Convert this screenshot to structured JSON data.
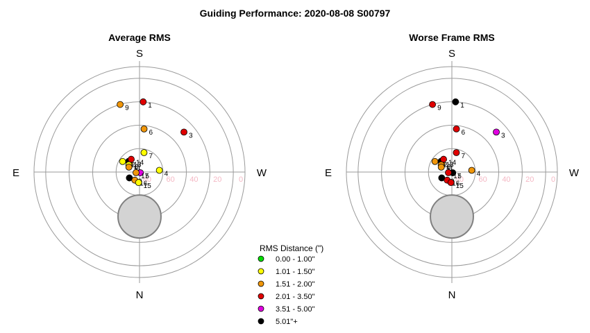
{
  "title": "Guiding Performance: 2020-08-08 S00797",
  "legend": {
    "title": "RMS Distance (\")",
    "items": [
      {
        "label": "0.00 - 1.00\"",
        "color": "#00dd00"
      },
      {
        "label": "1.01 - 1.50\"",
        "color": "#ffff00"
      },
      {
        "label": "1.51 - 2.00\"",
        "color": "#f0960a"
      },
      {
        "label": "2.01 - 3.50\"",
        "color": "#e00000"
      },
      {
        "label": "3.51 - 5.00\"",
        "color": "#e000e0"
      },
      {
        "label": "5.01\"+",
        "color": "#000000"
      }
    ]
  },
  "chart_data": [
    {
      "type": "scatter",
      "subtype": "polar",
      "title": "Average RMS",
      "directions": {
        "top": "S",
        "bottom": "N",
        "left": "E",
        "right": "W"
      },
      "radial_axis": {
        "center_value": 90,
        "edge_value": 0,
        "tick_labels": [
          "80",
          "60",
          "40",
          "20",
          "0"
        ],
        "reversed": true
      },
      "obstruction": {
        "label": "",
        "center_alt": 55,
        "center_az": 0,
        "radius_deg": 13
      },
      "points": [
        {
          "label": "1",
          "alt": 30,
          "az": 177,
          "color": "#e00000"
        },
        {
          "label": "9",
          "alt": 30,
          "az": 196,
          "color": "#f0960a"
        },
        {
          "label": "6",
          "alt": 53,
          "az": 174,
          "color": "#f0960a"
        },
        {
          "label": "3",
          "alt": 39,
          "az": 132,
          "color": "#e00000"
        },
        {
          "label": "7",
          "alt": 73,
          "az": 167,
          "color": "#ffff00"
        },
        {
          "label": "12",
          "alt": 73,
          "az": 238,
          "color": "#ffff00"
        },
        {
          "label": "8",
          "alt": 79,
          "az": 230,
          "color": "#f0960a"
        },
        {
          "label": "13",
          "alt": 77,
          "az": 225,
          "color": "#000000"
        },
        {
          "label": "14",
          "alt": 77,
          "az": 213,
          "color": "#e00000"
        },
        {
          "label": "11",
          "alt": 79,
          "az": 236,
          "color": "#ffff00"
        },
        {
          "label": "2",
          "alt": 80,
          "az": 245,
          "color": "#f0960a"
        },
        {
          "label": "10",
          "alt": 80,
          "az": 300,
          "color": "#000000"
        },
        {
          "label": "4",
          "alt": 73,
          "az": 95,
          "color": "#ffff00"
        },
        {
          "label": "5",
          "alt": 89,
          "az": 50,
          "color": "#e000e0"
        },
        {
          "label": "16",
          "alt": 82,
          "az": 330,
          "color": "#f0960a"
        },
        {
          "label": "15",
          "alt": 81,
          "az": 355,
          "color": "#ffff00"
        },
        {
          "label": "17",
          "alt": 87,
          "az": 280,
          "color": "#f0960a"
        }
      ]
    },
    {
      "type": "scatter",
      "subtype": "polar",
      "title": "Worse Frame RMS",
      "directions": {
        "top": "S",
        "bottom": "N",
        "left": "E",
        "right": "W"
      },
      "radial_axis": {
        "center_value": 90,
        "edge_value": 0,
        "tick_labels": [
          "80",
          "60",
          "40",
          "20",
          "0"
        ],
        "reversed": true
      },
      "obstruction": {
        "label": "",
        "center_alt": 55,
        "center_az": 0,
        "radius_deg": 13
      },
      "points": [
        {
          "label": "1",
          "alt": 30,
          "az": 177,
          "color": "#000000"
        },
        {
          "label": "9",
          "alt": 30,
          "az": 196,
          "color": "#e00000"
        },
        {
          "label": "6",
          "alt": 53,
          "az": 174,
          "color": "#e00000"
        },
        {
          "label": "3",
          "alt": 39,
          "az": 132,
          "color": "#e000e0"
        },
        {
          "label": "7",
          "alt": 73,
          "az": 167,
          "color": "#e00000"
        },
        {
          "label": "12",
          "alt": 73,
          "az": 238,
          "color": "#f0960a"
        },
        {
          "label": "8",
          "alt": 79,
          "az": 230,
          "color": "#f0960a"
        },
        {
          "label": "13",
          "alt": 77,
          "az": 225,
          "color": "#000000"
        },
        {
          "label": "14",
          "alt": 77,
          "az": 213,
          "color": "#e00000"
        },
        {
          "label": "11",
          "alt": 79,
          "az": 236,
          "color": "#f0960a"
        },
        {
          "label": "2",
          "alt": 80,
          "az": 245,
          "color": "#f0960a"
        },
        {
          "label": "10",
          "alt": 80,
          "az": 300,
          "color": "#000000"
        },
        {
          "label": "4",
          "alt": 73,
          "az": 95,
          "color": "#f0960a"
        },
        {
          "label": "5",
          "alt": 89,
          "az": 50,
          "color": "#000000"
        },
        {
          "label": "16",
          "alt": 82,
          "az": 330,
          "color": "#e00000"
        },
        {
          "label": "15",
          "alt": 81,
          "az": 355,
          "color": "#e00000"
        },
        {
          "label": "17",
          "alt": 87,
          "az": 280,
          "color": "#e00000"
        }
      ]
    }
  ]
}
